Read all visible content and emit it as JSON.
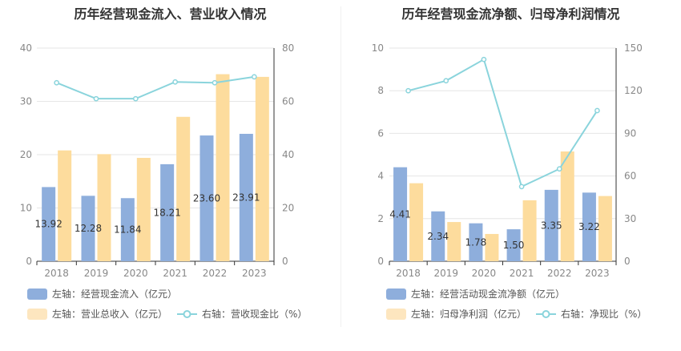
{
  "chart_data": [
    {
      "type": "bar",
      "title": "历年经营现金流入、营业收入情况",
      "categories": [
        "2018",
        "2019",
        "2020",
        "2021",
        "2022",
        "2023"
      ],
      "left_axis": {
        "min": 0,
        "max": 40,
        "ticks": [
          "0",
          "10",
          "20",
          "30",
          "40"
        ]
      },
      "right_axis": {
        "min": 0,
        "max": 80,
        "ticks": [
          "0",
          "20",
          "40",
          "60",
          "80"
        ]
      },
      "series": [
        {
          "name": "左轴：经营现金流入（亿元）",
          "type": "bar",
          "axis": "left",
          "color": "#8eaedc",
          "values": [
            13.92,
            12.28,
            11.84,
            18.21,
            23.6,
            23.91
          ],
          "labels": [
            "13.92",
            "12.28",
            "11.84",
            "18.21",
            "23.60",
            "23.91"
          ]
        },
        {
          "name": "左轴：营业总收入（亿元）",
          "type": "bar",
          "axis": "left",
          "color": "#fddc9d",
          "values": [
            20.8,
            20.1,
            19.4,
            27.1,
            35.1,
            34.6
          ]
        },
        {
          "name": "右轴：营收现金比（%）",
          "type": "line",
          "axis": "right",
          "color": "#8ad4dc",
          "values": [
            67,
            61,
            61,
            67.3,
            67,
            69.2
          ]
        }
      ],
      "legend_position": "bottom"
    },
    {
      "type": "bar",
      "title": "历年经营现金流净额、归母净利润情况",
      "categories": [
        "2018",
        "2019",
        "2020",
        "2021",
        "2022",
        "2023"
      ],
      "left_axis": {
        "min": 0,
        "max": 10,
        "ticks": [
          "0",
          "2",
          "4",
          "6",
          "8",
          "10"
        ]
      },
      "right_axis": {
        "min": 0,
        "max": 150,
        "ticks": [
          "0",
          "30",
          "60",
          "90",
          "120",
          "150"
        ]
      },
      "series": [
        {
          "name": "左轴：经营活动现金流净额（亿元）",
          "type": "bar",
          "axis": "left",
          "color": "#8eaedc",
          "values": [
            4.41,
            2.34,
            1.78,
            1.5,
            3.35,
            3.22
          ],
          "labels": [
            "4.41",
            "2.34",
            "1.78",
            "1.50",
            "3.35",
            "3.22"
          ]
        },
        {
          "name": "左轴：归母净利润（亿元）",
          "type": "bar",
          "axis": "left",
          "color": "#fddc9d",
          "values": [
            3.66,
            1.84,
            1.28,
            2.86,
            5.15,
            3.06
          ]
        },
        {
          "name": "右轴：净现比（%）",
          "type": "line",
          "axis": "right",
          "color": "#8ad4dc",
          "values": [
            120,
            127,
            142,
            52.5,
            65,
            106
          ]
        }
      ],
      "legend_position": "bottom"
    }
  ]
}
